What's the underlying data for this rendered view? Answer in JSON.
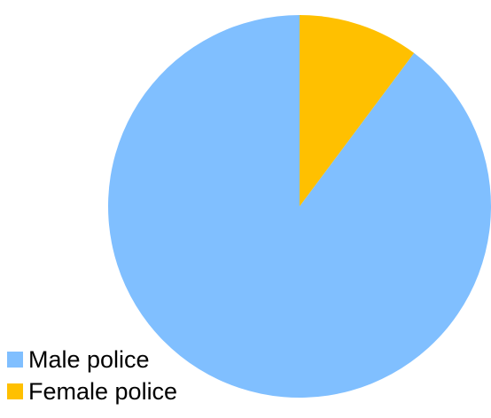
{
  "chart_data": {
    "type": "pie",
    "categories": [
      "Male police",
      "Female police"
    ],
    "values": [
      89.8,
      10.2
    ],
    "colors": [
      "#80BFFF",
      "#FFC000"
    ],
    "start_angle_deg": 0,
    "direction": "counterclockwise",
    "legend_position": "bottom-left",
    "title": ""
  }
}
